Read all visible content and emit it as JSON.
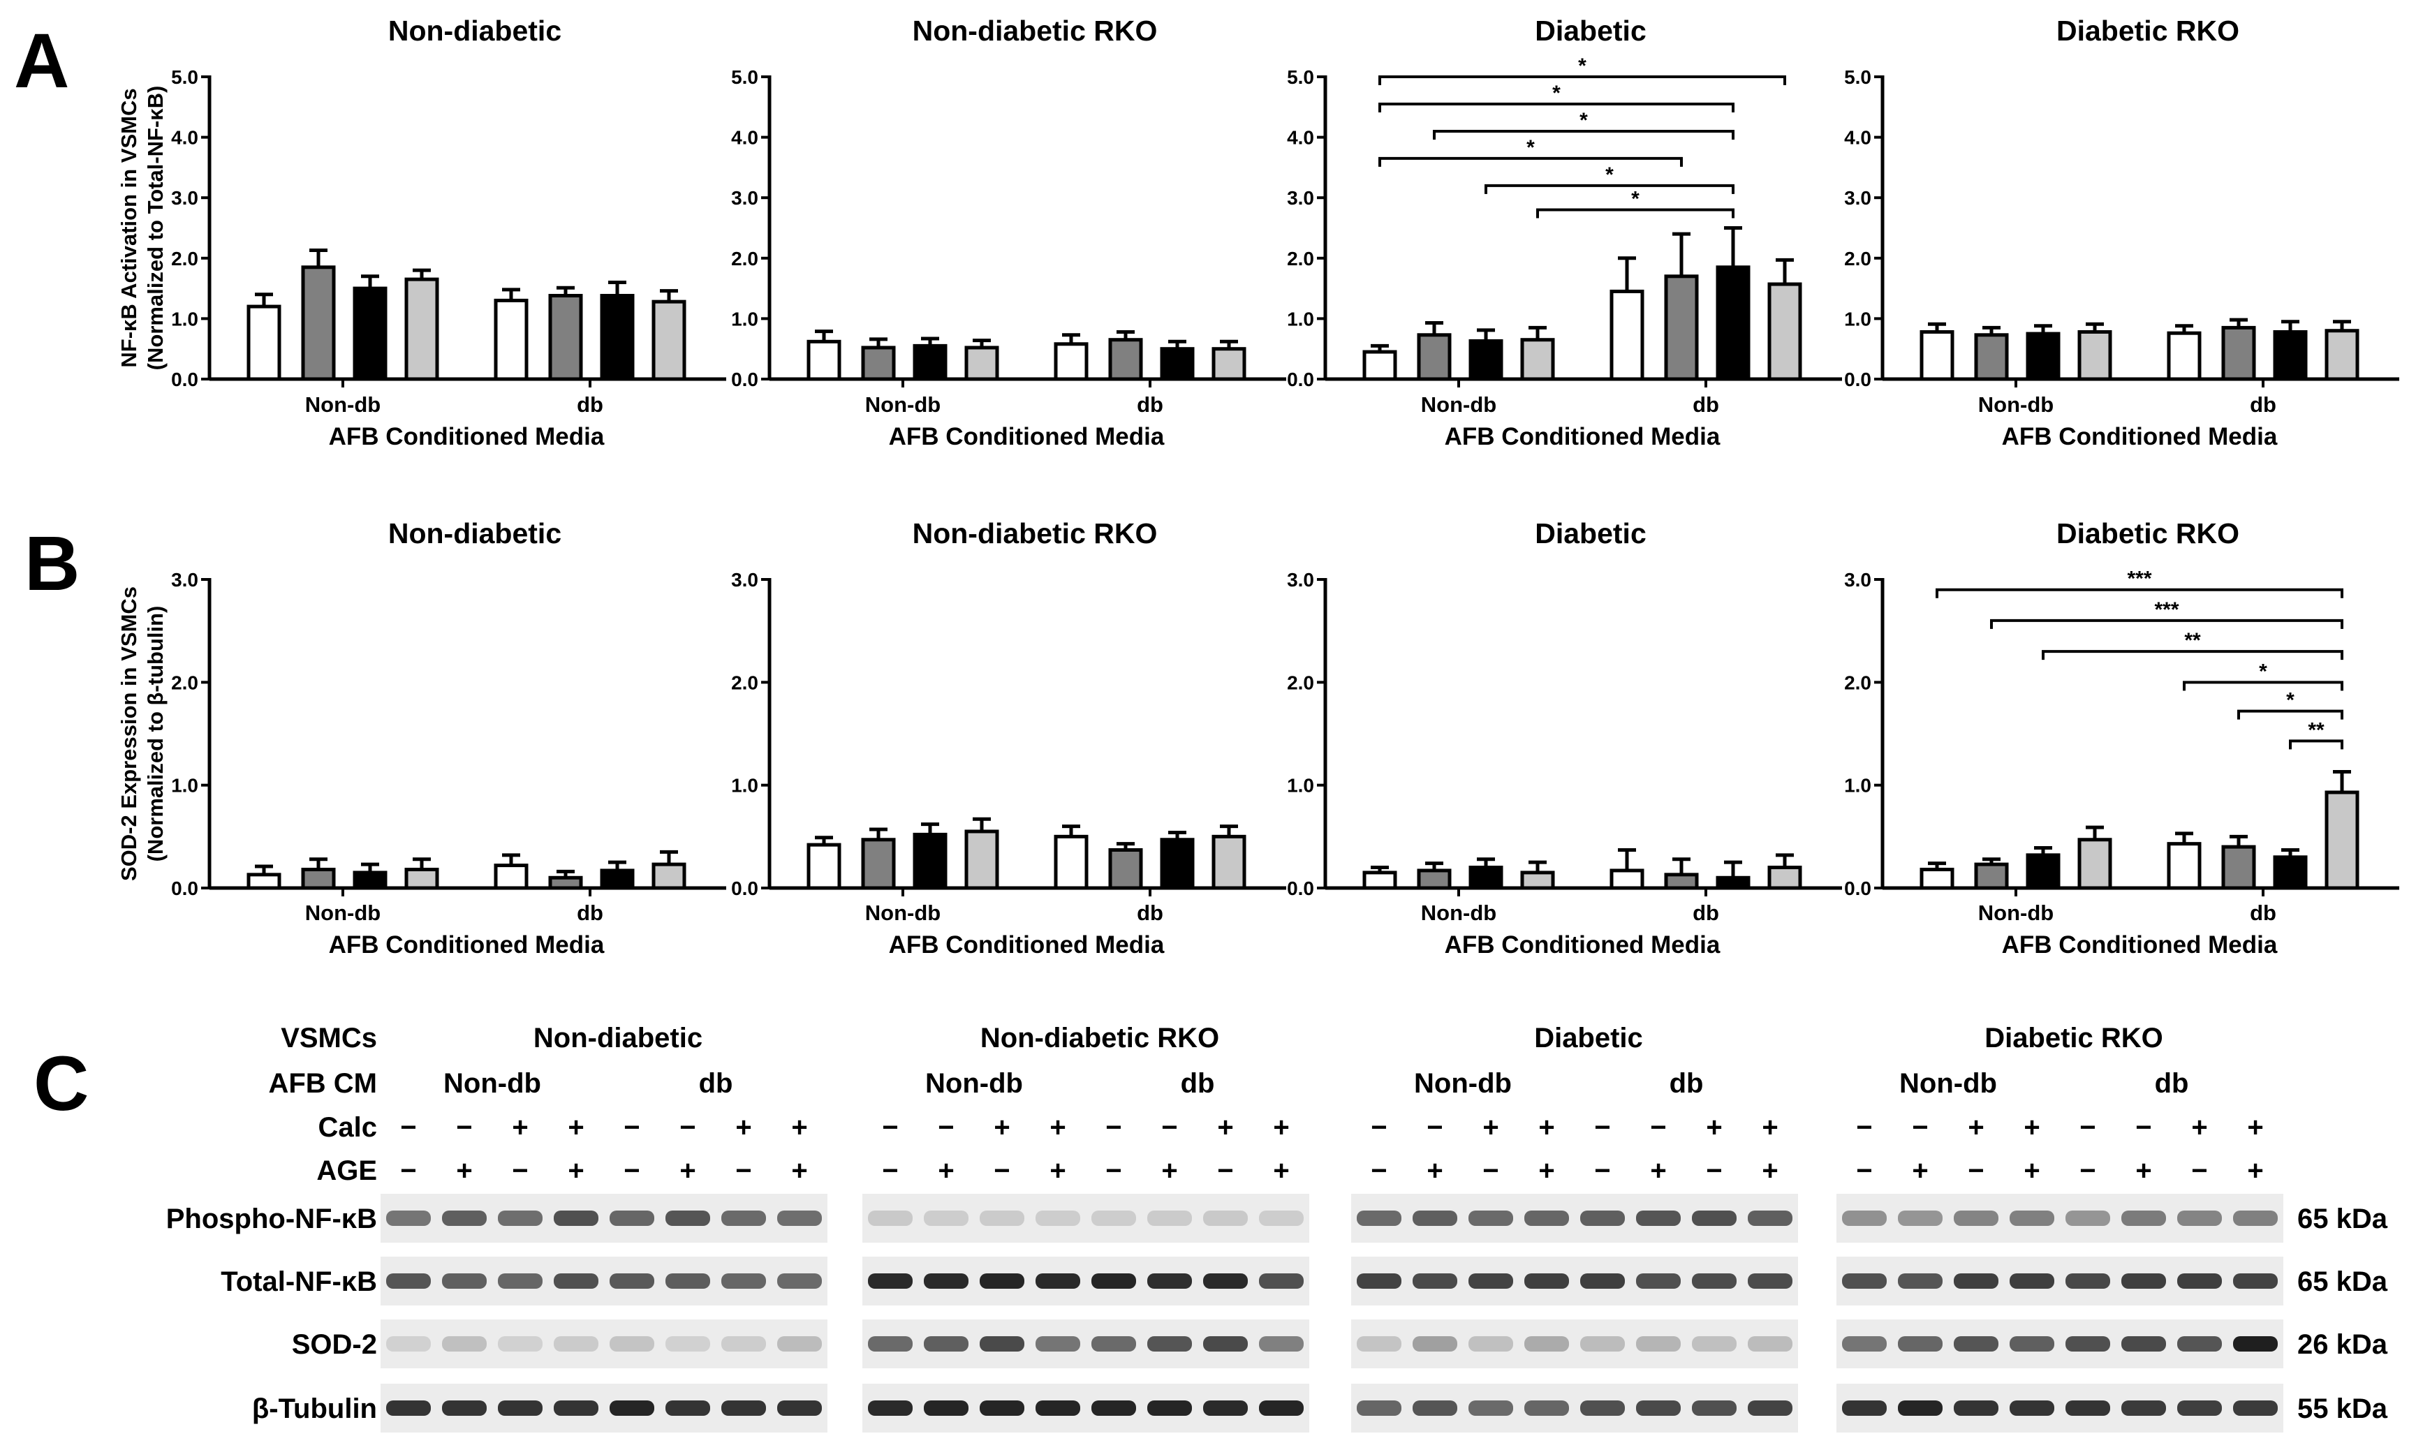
{
  "chart_data": [
    {
      "panel": "A",
      "type": "bar",
      "title": "Non-diabetic",
      "xlabel": "AFB Conditioned Media",
      "ylabel": [
        "NF-κB Activation in VSMCs",
        "(Normalized to Total-NF-κB)"
      ],
      "ylim": [
        0,
        5
      ],
      "yticks": [
        "0.0",
        "1.0",
        "2.0",
        "3.0",
        "4.0",
        "5.0"
      ],
      "groups": [
        "Non-db",
        "db"
      ],
      "series_colors": [
        "#ffffff",
        "#808080",
        "#000000",
        "#c8c8c8"
      ],
      "values": [
        [
          1.2,
          1.85,
          1.5,
          1.65
        ],
        [
          1.3,
          1.38,
          1.38,
          1.28
        ]
      ],
      "errors": [
        [
          0.2,
          0.28,
          0.2,
          0.15
        ],
        [
          0.18,
          0.13,
          0.22,
          0.18
        ]
      ],
      "significance": []
    },
    {
      "panel": "A",
      "type": "bar",
      "title": "Non-diabetic RKO",
      "xlabel": "AFB Conditioned Media",
      "ylabel": [],
      "ylim": [
        0,
        5
      ],
      "yticks": [
        "0.0",
        "1.0",
        "2.0",
        "3.0",
        "4.0",
        "5.0"
      ],
      "groups": [
        "Non-db",
        "db"
      ],
      "series_colors": [
        "#ffffff",
        "#808080",
        "#000000",
        "#c8c8c8"
      ],
      "values": [
        [
          0.62,
          0.52,
          0.55,
          0.52
        ],
        [
          0.58,
          0.65,
          0.5,
          0.5
        ]
      ],
      "errors": [
        [
          0.17,
          0.14,
          0.12,
          0.12
        ],
        [
          0.15,
          0.13,
          0.12,
          0.12
        ]
      ],
      "significance": []
    },
    {
      "panel": "A",
      "type": "bar",
      "title": "Diabetic",
      "xlabel": "AFB Conditioned Media",
      "ylabel": [],
      "ylim": [
        0,
        5
      ],
      "yticks": [
        "0.0",
        "1.0",
        "2.0",
        "3.0",
        "4.0",
        "5.0"
      ],
      "groups": [
        "Non-db",
        "db"
      ],
      "series_colors": [
        "#ffffff",
        "#808080",
        "#000000",
        "#c8c8c8"
      ],
      "values": [
        [
          0.45,
          0.73,
          0.63,
          0.65
        ],
        [
          1.45,
          1.7,
          1.85,
          1.57
        ]
      ],
      "errors": [
        [
          0.1,
          0.2,
          0.18,
          0.2
        ],
        [
          0.55,
          0.7,
          0.65,
          0.4
        ]
      ],
      "significance": [
        {
          "from": 0,
          "to": 7,
          "y": 5.0,
          "label": "*"
        },
        {
          "from": 0,
          "to": 6,
          "y": 4.55,
          "label": "*"
        },
        {
          "from": 1,
          "to": 6,
          "y": 4.1,
          "label": "*"
        },
        {
          "from": 0,
          "to": 5,
          "y": 3.65,
          "label": "*"
        },
        {
          "from": 2,
          "to": 6,
          "y": 3.2,
          "label": "*"
        },
        {
          "from": 3,
          "to": 6,
          "y": 2.8,
          "label": "*"
        }
      ]
    },
    {
      "panel": "A",
      "type": "bar",
      "title": "Diabetic RKO",
      "xlabel": "AFB Conditioned Media",
      "ylabel": [],
      "ylim": [
        0,
        5
      ],
      "yticks": [
        "0.0",
        "1.0",
        "2.0",
        "3.0",
        "4.0",
        "5.0"
      ],
      "groups": [
        "Non-db",
        "db"
      ],
      "series_colors": [
        "#ffffff",
        "#808080",
        "#000000",
        "#c8c8c8"
      ],
      "values": [
        [
          0.78,
          0.73,
          0.75,
          0.78
        ],
        [
          0.76,
          0.85,
          0.78,
          0.8
        ]
      ],
      "errors": [
        [
          0.13,
          0.12,
          0.13,
          0.13
        ],
        [
          0.12,
          0.13,
          0.17,
          0.15
        ]
      ],
      "significance": []
    },
    {
      "panel": "B",
      "type": "bar",
      "title": "Non-diabetic",
      "xlabel": "AFB Conditioned Media",
      "ylabel": [
        "SOD-2 Expression in VSMCs",
        "(Normalized to β-tubulin)"
      ],
      "ylim": [
        0,
        3
      ],
      "yticks": [
        "0.0",
        "1.0",
        "2.0",
        "3.0"
      ],
      "groups": [
        "Non-db",
        "db"
      ],
      "series_colors": [
        "#ffffff",
        "#808080",
        "#000000",
        "#c8c8c8"
      ],
      "values": [
        [
          0.13,
          0.18,
          0.15,
          0.18
        ],
        [
          0.22,
          0.1,
          0.17,
          0.23
        ]
      ],
      "errors": [
        [
          0.08,
          0.1,
          0.08,
          0.1
        ],
        [
          0.1,
          0.06,
          0.08,
          0.12
        ]
      ],
      "significance": []
    },
    {
      "panel": "B",
      "type": "bar",
      "title": "Non-diabetic RKO",
      "xlabel": "AFB Conditioned Media",
      "ylabel": [],
      "ylim": [
        0,
        3
      ],
      "yticks": [
        "0.0",
        "1.0",
        "2.0",
        "3.0"
      ],
      "groups": [
        "Non-db",
        "db"
      ],
      "series_colors": [
        "#ffffff",
        "#808080",
        "#000000",
        "#c8c8c8"
      ],
      "values": [
        [
          0.42,
          0.47,
          0.52,
          0.55
        ],
        [
          0.5,
          0.37,
          0.47,
          0.5
        ]
      ],
      "errors": [
        [
          0.07,
          0.1,
          0.1,
          0.12
        ],
        [
          0.1,
          0.06,
          0.07,
          0.1
        ]
      ],
      "significance": []
    },
    {
      "panel": "B",
      "type": "bar",
      "title": "Diabetic",
      "xlabel": "AFB Conditioned Media",
      "ylabel": [],
      "ylim": [
        0,
        3
      ],
      "yticks": [
        "0.0",
        "1.0",
        "2.0",
        "3.0"
      ],
      "groups": [
        "Non-db",
        "db"
      ],
      "series_colors": [
        "#ffffff",
        "#808080",
        "#000000",
        "#c8c8c8"
      ],
      "values": [
        [
          0.15,
          0.17,
          0.2,
          0.15
        ],
        [
          0.17,
          0.13,
          0.1,
          0.2
        ]
      ],
      "errors": [
        [
          0.05,
          0.07,
          0.08,
          0.1
        ],
        [
          0.2,
          0.15,
          0.15,
          0.12
        ]
      ],
      "significance": []
    },
    {
      "panel": "B",
      "type": "bar",
      "title": "Diabetic RKO",
      "xlabel": "AFB Conditioned Media",
      "ylabel": [],
      "ylim": [
        0,
        3
      ],
      "yticks": [
        "0.0",
        "1.0",
        "2.0",
        "3.0"
      ],
      "groups": [
        "Non-db",
        "db"
      ],
      "series_colors": [
        "#ffffff",
        "#808080",
        "#000000",
        "#c8c8c8"
      ],
      "values": [
        [
          0.18,
          0.23,
          0.32,
          0.47
        ],
        [
          0.43,
          0.4,
          0.3,
          0.93
        ]
      ],
      "errors": [
        [
          0.06,
          0.05,
          0.07,
          0.12
        ],
        [
          0.1,
          0.1,
          0.07,
          0.2
        ]
      ],
      "significance": [
        {
          "from": 0,
          "to": 7,
          "y": 2.9,
          "label": "***"
        },
        {
          "from": 1,
          "to": 7,
          "y": 2.6,
          "label": "***"
        },
        {
          "from": 2,
          "to": 7,
          "y": 2.3,
          "label": "**"
        },
        {
          "from": 4,
          "to": 7,
          "y": 2.0,
          "label": "*"
        },
        {
          "from": 5,
          "to": 7,
          "y": 1.72,
          "label": "*"
        },
        {
          "from": 6,
          "to": 7,
          "y": 1.43,
          "label": "**"
        }
      ]
    }
  ],
  "panel_letters": {
    "a": "A",
    "b": "B",
    "c": "C"
  },
  "western": {
    "row_titles": {
      "vsmcs": "VSMCs",
      "afb_cm": "AFB CM",
      "calc": "Calc",
      "age": "AGE"
    },
    "blocks": [
      {
        "title": "Non-diabetic",
        "groups": [
          "Non-db",
          "db"
        ]
      },
      {
        "title": "Non-diabetic RKO",
        "groups": [
          "Non-db",
          "db"
        ]
      },
      {
        "title": "Diabetic",
        "groups": [
          "Non-db",
          "db"
        ]
      },
      {
        "title": "Diabetic RKO",
        "groups": [
          "Non-db",
          "db"
        ]
      }
    ],
    "calc_signs": [
      "−",
      "−",
      "+",
      "+",
      "−",
      "−",
      "+",
      "+"
    ],
    "age_signs": [
      "−",
      "+",
      "−",
      "+",
      "−",
      "+",
      "−",
      "+"
    ],
    "blots": [
      {
        "label": "Phospho-NF-κB",
        "kda": "65 kDa"
      },
      {
        "label": "Total-NF-κB",
        "kda": "65 kDa"
      },
      {
        "label": "SOD-2",
        "kda": "26 kDa"
      },
      {
        "label": "β-Tubulin",
        "kda": "55 kDa"
      }
    ]
  }
}
